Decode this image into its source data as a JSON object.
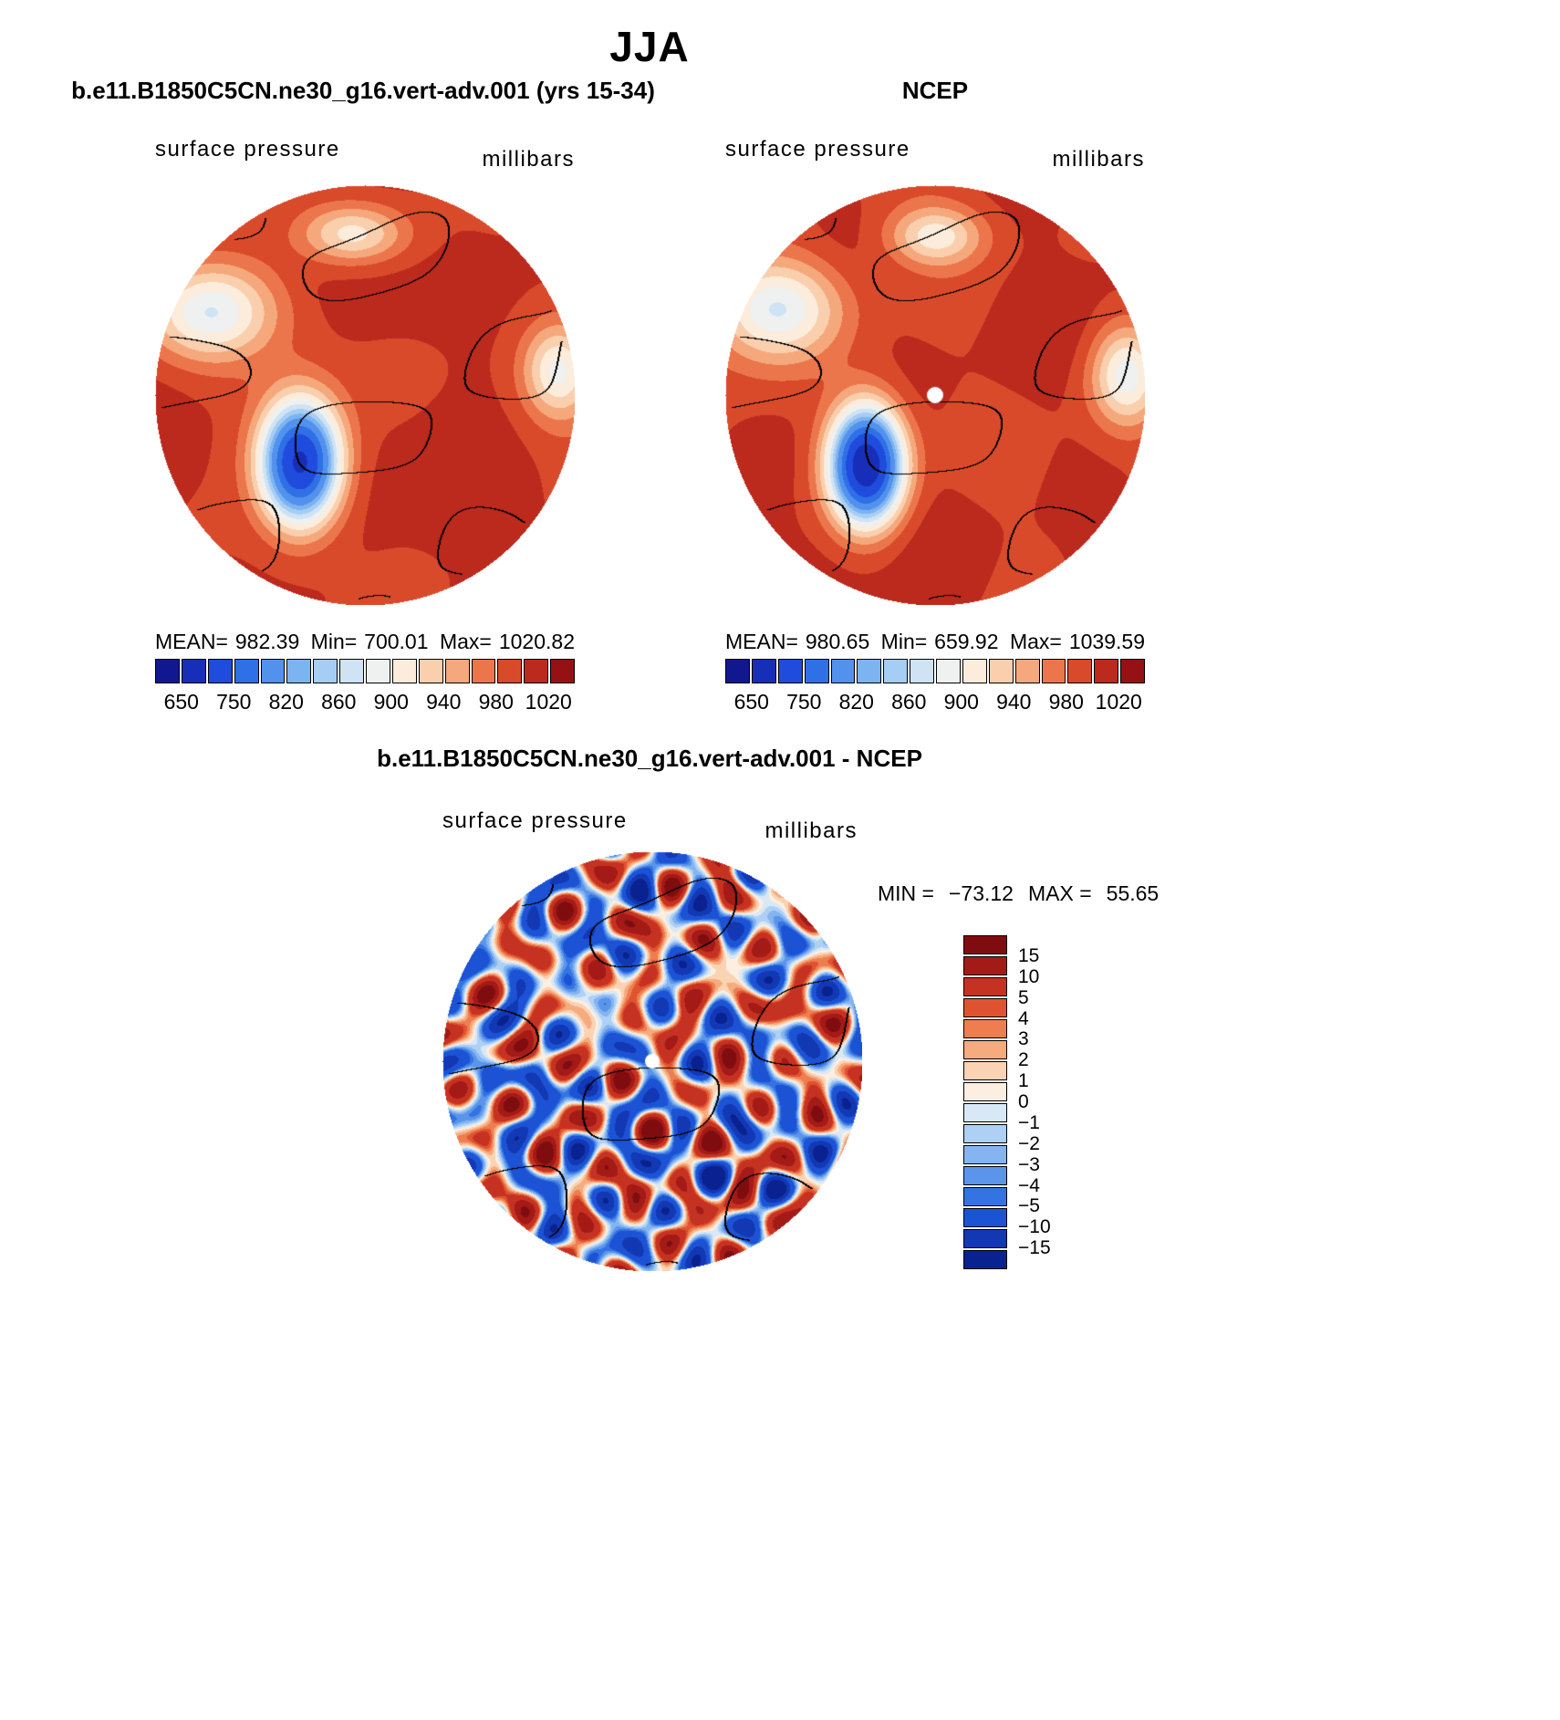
{
  "title": "JJA",
  "panels": {
    "model": {
      "title": "b.e11.B1850C5CN.ne30_g16.vert-adv.001 (yrs 15-34)",
      "field_label": "surface pressure",
      "units_label": "millibars",
      "stats": {
        "mean_label": "MEAN=",
        "mean": "982.39",
        "min_label": "Min=",
        "min": "700.01",
        "max_label": "Max=",
        "max": "1020.82"
      },
      "colorbar_ticks": [
        "650",
        "750",
        "820",
        "860",
        "900",
        "940",
        "980",
        "1020"
      ]
    },
    "ncep": {
      "title": "NCEP",
      "field_label": "surface pressure",
      "units_label": "millibars",
      "stats": {
        "mean_label": "MEAN=",
        "mean": "980.65",
        "min_label": "Min=",
        "min": "659.92",
        "max_label": "Max=",
        "max": "1039.59"
      },
      "colorbar_ticks": [
        "650",
        "750",
        "820",
        "860",
        "900",
        "940",
        "980",
        "1020"
      ]
    },
    "diff": {
      "title": "b.e11.B1850C5CN.ne30_g16.vert-adv.001 - NCEP",
      "field_label": "surface pressure",
      "units_label": "millibars",
      "stats": {
        "min_label": "MIN =",
        "min": "−73.12",
        "max_label": "MAX =",
        "max": "55.65"
      },
      "colorbar_labels": [
        "15",
        "10",
        "5",
        "4",
        "3",
        "2",
        "1",
        "0",
        "−1",
        "−2",
        "−3",
        "−4",
        "−5",
        "−10",
        "−15"
      ]
    }
  },
  "colors": {
    "background": "#ffffff",
    "coastline": "#000000",
    "pole_dot": "#ffffff",
    "pressure_palette": [
      "#11188f",
      "#172fb8",
      "#1f4cdc",
      "#3070e6",
      "#5292ec",
      "#7cb3f1",
      "#a6cdf3",
      "#cfe3f4",
      "#eef1ef",
      "#fcecdc",
      "#f9cfae",
      "#f5a87c",
      "#ec764b",
      "#d94a2b",
      "#bc2a1d",
      "#951113"
    ],
    "diff_palette": [
      "#0a2190",
      "#1238b4",
      "#1c52d4",
      "#3473e2",
      "#5b95ea",
      "#84b5f0",
      "#aed0f4",
      "#d8e8f6",
      "#fceee0",
      "#f9d3b3",
      "#f5ab7e",
      "#ee7d4f",
      "#e05330",
      "#c63222",
      "#a31a17",
      "#7f0d10"
    ]
  },
  "chart_data": [
    {
      "type": "heatmap",
      "panel": "model",
      "projection": "north-polar-stereographic",
      "title": "b.e11.B1850C5CN.ne30_g16.vert-adv.001 (yrs 15-34)",
      "variable": "surface pressure",
      "units": "millibars",
      "stats": {
        "mean": 982.39,
        "min": 700.01,
        "max": 1020.82
      },
      "colorbar_ticks": [
        650,
        750,
        820,
        860,
        900,
        940,
        980,
        1020
      ],
      "colorbar_orientation": "horizontal",
      "legend_position": "bottom"
    },
    {
      "type": "heatmap",
      "panel": "observations",
      "projection": "north-polar-stereographic",
      "title": "NCEP",
      "variable": "surface pressure",
      "units": "millibars",
      "stats": {
        "mean": 980.65,
        "min": 659.92,
        "max": 1039.59
      },
      "colorbar_ticks": [
        650,
        750,
        820,
        860,
        900,
        940,
        980,
        1020
      ],
      "colorbar_orientation": "horizontal",
      "legend_position": "bottom"
    },
    {
      "type": "heatmap",
      "panel": "difference",
      "projection": "north-polar-stereographic",
      "title": "b.e11.B1850C5CN.ne30_g16.vert-adv.001 - NCEP",
      "variable": "surface pressure",
      "units": "millibars",
      "stats": {
        "min": -73.12,
        "max": 55.65
      },
      "colorbar_levels": [
        15,
        10,
        5,
        4,
        3,
        2,
        1,
        0,
        -1,
        -2,
        -3,
        -4,
        -5,
        -10,
        -15
      ],
      "colorbar_orientation": "vertical",
      "legend_position": "right"
    }
  ]
}
